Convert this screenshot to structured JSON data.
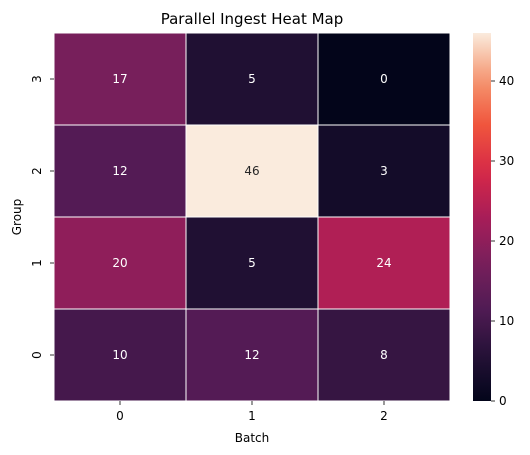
{
  "chart_data": {
    "type": "heatmap",
    "title": "Parallel Ingest Heat Map",
    "xlabel": "Batch",
    "ylabel": "Group",
    "x_categories": [
      "0",
      "1",
      "2"
    ],
    "y_categories": [
      "3",
      "2",
      "1",
      "0"
    ],
    "values": [
      [
        17,
        5,
        0
      ],
      [
        12,
        46,
        3
      ],
      [
        20,
        5,
        24
      ],
      [
        10,
        12,
        8
      ]
    ],
    "colorbar": {
      "range": [
        0,
        46
      ],
      "ticks": [
        0,
        10,
        20,
        30,
        40
      ],
      "colormap": "rocket"
    },
    "annotations": true,
    "grid_line_color": "#ffffff",
    "low_text_color": "#ffffff",
    "high_text_color": "#262626"
  }
}
